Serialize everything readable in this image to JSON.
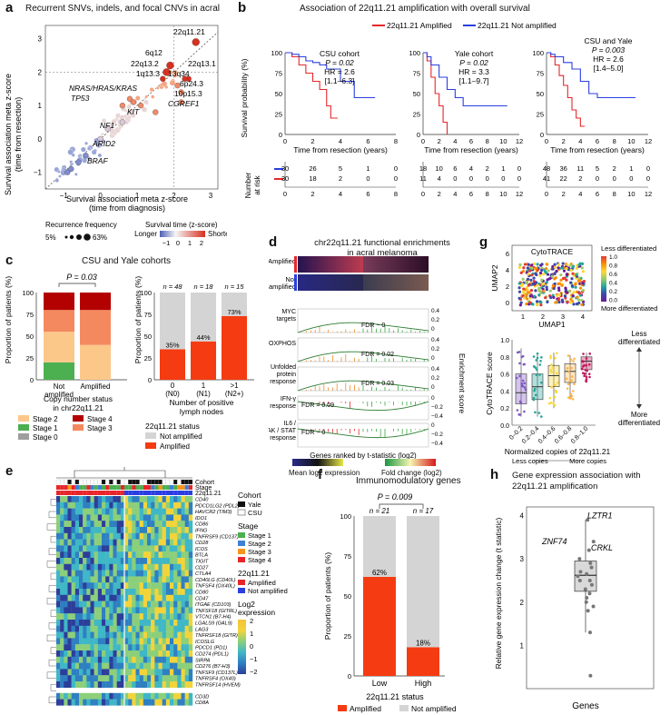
{
  "panels": {
    "a": {
      "letter": "a",
      "title": "Recurrent SNVs, indels, and focal CNVs in acral",
      "xlabel_1": "Survival association meta z-score",
      "xlabel_2": "(time from diagnosis)",
      "ylabel_1": "Survival association meta z-score",
      "ylabel_2": "(time from resection)",
      "genes": [
        "22q11.21",
        "6q12",
        "22q13.2",
        "1q13.3",
        "13q34",
        "22q13.1",
        "6p24.3",
        "10p15.3",
        "NRAS/HRAS/KRAS",
        "TP53",
        "KIT",
        "CGREF1",
        "NF1",
        "ARID2",
        "BRAF"
      ],
      "legend_recurrence": "Recurrence frequency",
      "rec_low": "5%",
      "rec_high": "63%",
      "legend_survival": "Survival time (z-score)",
      "surv_longer": "Longer",
      "surv_shorter": "Shorter",
      "surv_ticks": [
        "−1",
        "0",
        "1",
        "2"
      ],
      "xticks": [
        "−1",
        "0",
        "1",
        "2",
        "3"
      ],
      "yticks": [
        "−1",
        "0",
        "1",
        "2",
        "3"
      ]
    },
    "b": {
      "letter": "b",
      "title": "Association of 22q11.21 amplification with overall survival",
      "legend_amp": "22q11.21 Amplified",
      "legend_not": "22q11.21 Not amplified",
      "ylabel": "Survival probability (%)",
      "xlabel": "Time from resection (years)",
      "risk_label_1": "Number",
      "risk_label_2": "at risk",
      "cohorts": [
        {
          "name": "CSU cohort",
          "p": "P = 0.02",
          "hr": "HR = 2.6",
          "ci": "[1.1–6.3]",
          "xticks": [
            "0",
            "2",
            "4",
            "6",
            "8"
          ],
          "risk_blue": [
            "30",
            "26",
            "5",
            "1",
            "0"
          ],
          "risk_red": [
            "30",
            "18",
            "2",
            "0",
            "0"
          ]
        },
        {
          "name": "Yale cohort",
          "p": "P = 0.02",
          "hr": "HR = 3.3",
          "ci": "[1.1–9.7]",
          "xticks": [
            "0",
            "2",
            "4",
            "6",
            "8",
            "10",
            "12"
          ],
          "risk_blue": [
            "18",
            "10",
            "6",
            "4",
            "2",
            "1",
            "0"
          ],
          "risk_red": [
            "11",
            "4",
            "0",
            "0",
            "0",
            "0",
            "0"
          ]
        },
        {
          "name": "CSU and Yale",
          "p": "P = 0.003",
          "hr": "HR = 2.6",
          "ci": "[1.4–5.0]",
          "xticks": [
            "0",
            "2",
            "4",
            "6",
            "8",
            "10",
            "12"
          ],
          "risk_blue": [
            "48",
            "36",
            "11",
            "5",
            "2",
            "1",
            "0"
          ],
          "risk_red": [
            "41",
            "22",
            "2",
            "0",
            "0",
            "0",
            "0"
          ]
        }
      ],
      "yticks": [
        "0",
        "25",
        "50",
        "75",
        "100"
      ]
    },
    "c": {
      "letter": "c",
      "title": "CSU and Yale cohorts",
      "pvalue": "P = 0.03",
      "ylabel": "Proportion of patients (%)",
      "left_cats": [
        "Not amplified",
        "Amplified"
      ],
      "left_xlabel_1": "Copy number status",
      "left_xlabel_2": "in chr22q11.21",
      "right_cats": [
        "0",
        "1",
        ">1"
      ],
      "right_cats_sub": [
        "(N0)",
        "(N1)",
        "(N2+)"
      ],
      "right_n": [
        "n = 48",
        "n = 18",
        "n = 15"
      ],
      "right_pct": [
        "35%",
        "44%",
        "73%"
      ],
      "right_xlabel_1": "Number of positive",
      "right_xlabel_2": "lymph nodes",
      "stage_legend": [
        "Stage 2",
        "Stage 1",
        "Stage 0",
        "Stage 4",
        "Stage 3"
      ],
      "status_title": "22q11.21 status",
      "status_legend": [
        "Not amplified",
        "Amplified"
      ],
      "yticks": [
        "0",
        "25",
        "50",
        "75",
        "100"
      ]
    },
    "d": {
      "letter": "d",
      "title_1": "chr22q11.21 functional enrichments",
      "title_2": "in acral melanoma",
      "rows": [
        "Amplified",
        "Not amplified"
      ],
      "pathways": [
        {
          "name": "MYC targets",
          "fdr": "FDR ~ 0"
        },
        {
          "name": "OXPHOS",
          "fdr": "FDR = 0.02"
        },
        {
          "name": "Unfolded protein response",
          "fdr": "FDR = 0.03"
        },
        {
          "name": "IFN-γ response",
          "fdr": "FDR = 0.09"
        },
        {
          "name": "IL6 / JAK / STAT response",
          "fdr": "FDR ~ 0"
        }
      ],
      "xlabel": "Genes ranked by t-statistic (log2)",
      "ylabel": "Enrichment score",
      "legend_mean": "Mean log2 expression",
      "legend_fc": "Fold change (log2)",
      "mean_ticks": [
        "−1",
        "0",
        "1"
      ],
      "fc_ticks": [
        "−2",
        "0",
        "2"
      ]
    },
    "e": {
      "letter": "e",
      "row_labels": [
        "Cohort",
        "Stage",
        "22q11.21"
      ],
      "genes": [
        "CD40",
        "PDCD1LG2 (PDL2)",
        "HAVCR2 (TIM3)",
        "IDO1",
        "CD86",
        "IFNG",
        "TNFRSF9 (CD137)",
        "CD28",
        "ICOS",
        "BTLA",
        "TIGIT",
        "CD27",
        "CTLA4",
        "CD40LG (CD40L)",
        "TNFSF4 (OX40L)",
        "CD80",
        "CD47",
        "ITGAE (CD103)",
        "TNFSF18 (GITRL)",
        "VTCN1 (B7-H4)",
        "LGALS9 (GAL9)",
        "LAG3",
        "TNFRSF18 (GITR)",
        "ICOSLG",
        "PDCD1 (PD1)",
        "CD274 (PDL1)",
        "SIRPA",
        "CD276 (B7-H3)",
        "TNFSF9 (CD137L)",
        "TNFRSF4 (OX40)",
        "TNFRSF14 (HVEM)",
        "CD3D",
        "CD8A"
      ],
      "cohort_title": "Cohort",
      "cohort_legend": [
        "Yale",
        "CSU"
      ],
      "stage_title": "Stage",
      "stage_legend": [
        "Stage 1",
        "Stage 2",
        "Stage 3",
        "Stage 4"
      ],
      "amp_title": "22q11.21",
      "amp_legend": [
        "Amplified",
        "Not amplified"
      ],
      "expr_title_1": "Log2",
      "expr_title_2": "expression",
      "expr_ticks": [
        "2",
        "1",
        "0",
        "−1",
        "−2"
      ]
    },
    "f": {
      "letter": "f",
      "title": "Immunomodulatory genes",
      "pvalue": "P = 0.009",
      "cats": [
        "Low",
        "High"
      ],
      "n": [
        "n = 21",
        "n = 17"
      ],
      "pct": [
        "62%",
        "18%"
      ],
      "ylabel": "Proportion of patients (%)",
      "xlabel": "22q11.21 status",
      "legend": [
        "Amplified",
        "Not amplified"
      ],
      "yticks": [
        "0",
        "25",
        "50",
        "75",
        "100"
      ]
    },
    "g": {
      "letter": "g",
      "umap_title": "CytoTRACE",
      "umap_xlabel": "UMAP1",
      "umap_ylabel": "UMAP2",
      "cb_top": "Less differentiated",
      "cb_bottom": "More differentiated",
      "cb_ticks": [
        "1.0",
        "0.8",
        "0.6",
        "0.4",
        "0.2",
        "0.0"
      ],
      "umap_xticks": [
        "1",
        "2",
        "3",
        "4"
      ],
      "umap_yticks": [
        "0",
        "2",
        "4",
        "6"
      ],
      "box_ylabel": "CytoTRACE score",
      "box_cats": [
        "0–0.2",
        "0.2–0.4",
        "0.4–0.6",
        "0.6–0.8",
        "0.8–1.0"
      ],
      "box_xlabel": "Normalized copies of 22q11.21",
      "less_copies": "Less copies",
      "more_copies": "More copies",
      "arrow_top_1": "Less",
      "arrow_top_2": "differentiated",
      "arrow_bot_1": "More",
      "arrow_bot_2": "differentiated",
      "box_yticks": [
        "0.0",
        "0.2",
        "0.4",
        "0.6",
        "0.8",
        "1.0"
      ]
    },
    "h": {
      "letter": "h",
      "title_1": "Gene expression association with",
      "title_2": "22q11.21 amplification",
      "ylabel": "Relative gene expression change (t statistic)",
      "xlabel": "Genes",
      "labels": [
        "LZTR1",
        "ZNF74",
        "CRKL"
      ],
      "yticks": [
        "1",
        "2",
        "3",
        "4"
      ]
    }
  },
  "chart_data": [
    {
      "type": "scatter",
      "panel": "a",
      "xlim": [
        -1.5,
        3.2
      ],
      "ylim": [
        -1.5,
        3.4
      ],
      "x": [
        2.6,
        1.9,
        1.8,
        1.7,
        2.4,
        2.3,
        2.1,
        2.2,
        0.9,
        0.6,
        1.5,
        2.2,
        0.6,
        0.0,
        -0.4,
        0.2,
        -0.6,
        1.1,
        0.8,
        -0.8,
        -0.9
      ],
      "y": [
        2.9,
        2.2,
        2.0,
        1.8,
        1.8,
        1.8,
        1.6,
        1.4,
        1.1,
        1.0,
        0.8,
        1.1,
        0.5,
        0.0,
        -0.5,
        0.3,
        -0.7,
        1.0,
        1.2,
        -0.9,
        -1.0
      ]
    },
    {
      "type": "line",
      "panel": "b-CSU",
      "series": [
        {
          "name": "22q11.21 Amplified",
          "x": [
            0,
            0.5,
            1,
            1.5,
            2,
            2.5,
            3,
            3.3,
            3.8
          ],
          "y": [
            100,
            95,
            85,
            75,
            65,
            55,
            35,
            20,
            20
          ]
        },
        {
          "name": "22q11.21 Not amplified",
          "x": [
            0,
            0.5,
            1,
            1.5,
            2,
            2.5,
            3,
            4,
            5,
            6.5
          ],
          "y": [
            100,
            98,
            95,
            90,
            88,
            85,
            80,
            65,
            45,
            45
          ]
        }
      ]
    },
    {
      "type": "line",
      "panel": "b-Yale",
      "series": [
        {
          "name": "22q11.21 Amplified",
          "x": [
            0,
            0.5,
            1,
            1.5,
            2,
            2.5,
            3
          ],
          "y": [
            100,
            90,
            70,
            50,
            35,
            15,
            0
          ]
        },
        {
          "name": "22q11.21 Not amplified",
          "x": [
            0,
            0.5,
            1,
            2,
            3,
            4,
            5,
            10.5
          ],
          "y": [
            100,
            95,
            85,
            70,
            55,
            45,
            35,
            35
          ]
        }
      ]
    },
    {
      "type": "line",
      "panel": "b-Combined",
      "series": [
        {
          "name": "22q11.21 Amplified",
          "x": [
            0,
            0.5,
            1,
            1.5,
            2,
            2.5,
            3,
            3.5,
            4,
            4.5
          ],
          "y": [
            100,
            95,
            85,
            72,
            60,
            45,
            30,
            20,
            10,
            10
          ]
        },
        {
          "name": "22q11.21 Not amplified",
          "x": [
            0,
            0.5,
            1,
            2,
            3,
            4,
            5,
            6,
            10.5
          ],
          "y": [
            100,
            98,
            95,
            88,
            80,
            65,
            50,
            45,
            45
          ]
        }
      ]
    },
    {
      "type": "bar",
      "panel": "c-left",
      "categories": [
        "Not amplified",
        "Amplified"
      ],
      "series": [
        {
          "name": "Stage 0",
          "values": [
            0,
            0
          ]
        },
        {
          "name": "Stage 1",
          "values": [
            20,
            0
          ]
        },
        {
          "name": "Stage 2",
          "values": [
            35,
            40
          ]
        },
        {
          "name": "Stage 3",
          "values": [
            25,
            40
          ]
        },
        {
          "name": "Stage 4",
          "values": [
            20,
            20
          ]
        }
      ]
    },
    {
      "type": "bar",
      "panel": "c-right",
      "categories": [
        "0",
        "1",
        ">1"
      ],
      "series": [
        {
          "name": "Amplified",
          "values": [
            35,
            44,
            73
          ]
        },
        {
          "name": "Not amplified",
          "values": [
            65,
            56,
            27
          ]
        }
      ]
    },
    {
      "type": "bar",
      "panel": "f",
      "categories": [
        "Low",
        "High"
      ],
      "series": [
        {
          "name": "Amplified",
          "values": [
            62,
            18
          ]
        },
        {
          "name": "Not amplified",
          "values": [
            38,
            82
          ]
        }
      ]
    },
    {
      "type": "scatter",
      "panel": "h",
      "ylim": [
        0,
        4.2
      ],
      "y": [
        3.9,
        3.4,
        3.2,
        3.0,
        2.9,
        2.8,
        2.7,
        2.65,
        2.6,
        2.5,
        2.5,
        2.4,
        2.3,
        2.2,
        2.1,
        2.0,
        1.9,
        1.8,
        1.3,
        0.3
      ]
    }
  ]
}
